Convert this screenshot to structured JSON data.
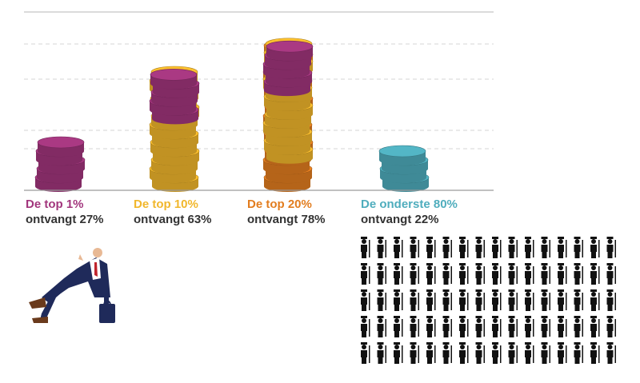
{
  "chart_data": {
    "type": "coin-stack",
    "categories": [
      "De top 1%",
      "De top 10%",
      "De top 20%",
      "De onderste 80%"
    ],
    "series": [
      {
        "name": null,
        "values": [
          27,
          63,
          78,
          22
        ],
        "value_labels": [
          "ontvangt 27%",
          "ontvangt 63%",
          "ontvangt 78%",
          "ontvangt 22%"
        ],
        "colors": [
          "#a2367d",
          "#f1b72c",
          "#e27d1f",
          "#4fadbd"
        ]
      }
    ],
    "ylim": [
      0,
      100
    ]
  }
}
